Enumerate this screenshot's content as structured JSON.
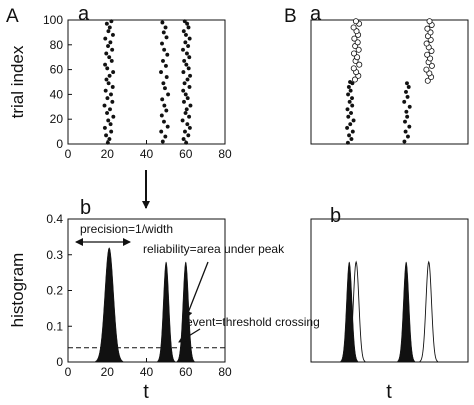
{
  "figure": {
    "panel_A": "A",
    "panel_B": "B",
    "sub_a": "a",
    "sub_b": "b",
    "ylabel_raster": "trial index",
    "ylabel_hist": "histogram",
    "xlabel_t": "t",
    "annotations": {
      "precision": "precision=1/width",
      "reliability": "reliability=area under peak",
      "event": "event=threshold crossing"
    }
  },
  "chart_data": [
    {
      "type": "scatter",
      "panel": "A-a",
      "xlim": [
        0,
        80
      ],
      "ylim": [
        0,
        100
      ],
      "xticks": [
        0,
        20,
        40,
        60,
        80
      ],
      "yticks": [
        0,
        20,
        40,
        60,
        80,
        100
      ],
      "series": [
        {
          "values": [
            [
              20.3,
              1
            ],
            [
              21.1,
              4
            ],
            [
              19.4,
              7
            ],
            [
              22.0,
              10
            ],
            [
              18.8,
              13
            ],
            [
              21.7,
              16
            ],
            [
              20.5,
              19
            ],
            [
              23.1,
              22
            ],
            [
              19.9,
              25
            ],
            [
              21.4,
              28
            ],
            [
              18.6,
              31
            ],
            [
              22.6,
              34
            ],
            [
              20.1,
              37
            ],
            [
              21.9,
              40
            ],
            [
              19.2,
              43
            ],
            [
              22.8,
              46
            ],
            [
              20.7,
              49
            ],
            [
              19.6,
              52
            ],
            [
              21.2,
              55
            ],
            [
              23.0,
              58
            ],
            [
              20.0,
              61
            ],
            [
              18.9,
              64
            ],
            [
              22.3,
              67
            ],
            [
              21.0,
              70
            ],
            [
              19.5,
              73
            ],
            [
              22.5,
              76
            ],
            [
              20.4,
              79
            ],
            [
              21.6,
              82
            ],
            [
              19.0,
              85
            ],
            [
              22.9,
              88
            ],
            [
              20.6,
              91
            ],
            [
              21.3,
              94
            ],
            [
              19.8,
              97
            ],
            [
              22.1,
              99
            ]
          ]
        },
        {
          "values": [
            [
              48.3,
              2
            ],
            [
              49.6,
              6
            ],
            [
              47.5,
              10
            ],
            [
              50.8,
              14
            ],
            [
              48.9,
              18
            ],
            [
              47.8,
              23
            ],
            [
              50.1,
              27
            ],
            [
              49.1,
              31
            ],
            [
              48.0,
              36
            ],
            [
              51.0,
              40
            ],
            [
              49.4,
              45
            ],
            [
              48.6,
              49
            ],
            [
              50.3,
              54
            ],
            [
              47.4,
              58
            ],
            [
              49.9,
              63
            ],
            [
              48.4,
              67
            ],
            [
              50.6,
              72
            ],
            [
              49.0,
              76
            ],
            [
              47.9,
              81
            ],
            [
              50.2,
              86
            ],
            [
              48.8,
              90
            ],
            [
              49.7,
              94
            ],
            [
              48.1,
              98
            ]
          ]
        },
        {
          "values": [
            [
              60.2,
              1
            ],
            [
              58.9,
              4
            ],
            [
              61.3,
              7
            ],
            [
              59.6,
              10
            ],
            [
              62.1,
              13
            ],
            [
              60.8,
              16
            ],
            [
              58.4,
              19
            ],
            [
              61.7,
              22
            ],
            [
              59.9,
              25
            ],
            [
              60.5,
              28
            ],
            [
              62.4,
              31
            ],
            [
              59.1,
              34
            ],
            [
              61.0,
              37
            ],
            [
              60.0,
              40
            ],
            [
              58.7,
              43
            ],
            [
              61.9,
              46
            ],
            [
              59.4,
              49
            ],
            [
              60.9,
              52
            ],
            [
              62.2,
              55
            ],
            [
              58.8,
              58
            ],
            [
              61.5,
              61
            ],
            [
              60.3,
              64
            ],
            [
              59.2,
              67
            ],
            [
              61.8,
              70
            ],
            [
              60.6,
              73
            ],
            [
              58.6,
              76
            ],
            [
              61.2,
              79
            ],
            [
              59.8,
              82
            ],
            [
              62.0,
              85
            ],
            [
              60.1,
              88
            ],
            [
              59.0,
              91
            ],
            [
              61.4,
              94
            ],
            [
              60.7,
              97
            ],
            [
              59.5,
              99
            ]
          ]
        }
      ]
    },
    {
      "type": "area",
      "panel": "A-b",
      "xlim": [
        0,
        80
      ],
      "ylim": [
        0,
        0.4
      ],
      "xticks": [
        0,
        20,
        40,
        60,
        80
      ],
      "yticks": [
        0,
        0.1,
        0.2,
        0.3,
        0.4
      ],
      "threshold": 0.04,
      "peaks": [
        {
          "center": 21,
          "height": 0.32,
          "width": 2.2
        },
        {
          "center": 50,
          "height": 0.28,
          "width": 1.4
        },
        {
          "center": 60,
          "height": 0.28,
          "width": 1.4
        }
      ]
    },
    {
      "type": "scatter",
      "panel": "B-a",
      "xlim": [
        0,
        80
      ],
      "ylim": [
        0,
        100
      ],
      "series": [
        {
          "style": "filled",
          "values": [
            [
              18.8,
              1
            ],
            [
              20.6,
              4
            ],
            [
              19.4,
              7
            ],
            [
              21.3,
              10
            ],
            [
              18.4,
              13
            ],
            [
              20.0,
              16
            ],
            [
              21.7,
              19
            ],
            [
              19.0,
              22
            ],
            [
              20.4,
              25
            ],
            [
              18.6,
              28
            ],
            [
              21.0,
              31
            ],
            [
              19.7,
              34
            ],
            [
              20.9,
              37
            ],
            [
              18.9,
              40
            ],
            [
              20.2,
              43
            ],
            [
              19.3,
              46
            ],
            [
              21.1,
              49
            ],
            [
              19.9,
              50
            ]
          ]
        },
        {
          "style": "filled",
          "values": [
            [
              47.6,
              2
            ],
            [
              49.4,
              6
            ],
            [
              48.2,
              10
            ],
            [
              50.1,
              14
            ],
            [
              47.9,
              18
            ],
            [
              49.0,
              22
            ],
            [
              48.6,
              26
            ],
            [
              50.3,
              30
            ],
            [
              47.5,
              34
            ],
            [
              49.2,
              38
            ],
            [
              48.4,
              42
            ],
            [
              49.8,
              46
            ],
            [
              48.9,
              49
            ]
          ]
        },
        {
          "style": "open",
          "values": [
            [
              22.4,
              52
            ],
            [
              24.1,
              55
            ],
            [
              23.0,
              58
            ],
            [
              21.8,
              61
            ],
            [
              24.6,
              64
            ],
            [
              22.7,
              67
            ],
            [
              23.5,
              70
            ],
            [
              21.9,
              73
            ],
            [
              24.3,
              76
            ],
            [
              22.5,
              79
            ],
            [
              23.8,
              82
            ],
            [
              22.1,
              85
            ],
            [
              24.0,
              88
            ],
            [
              23.2,
              91
            ],
            [
              21.7,
              94
            ],
            [
              24.5,
              97
            ],
            [
              22.9,
              99
            ]
          ]
        },
        {
          "style": "open",
          "values": [
            [
              59.5,
              51
            ],
            [
              61.2,
              54
            ],
            [
              60.3,
              57
            ],
            [
              58.8,
              60
            ],
            [
              61.6,
              63
            ],
            [
              59.9,
              66
            ],
            [
              60.7,
              69
            ],
            [
              59.2,
              72
            ],
            [
              61.4,
              75
            ],
            [
              60.0,
              78
            ],
            [
              58.9,
              81
            ],
            [
              61.0,
              84
            ],
            [
              59.6,
              87
            ],
            [
              60.9,
              90
            ],
            [
              59.3,
              93
            ],
            [
              61.5,
              96
            ],
            [
              60.4,
              99
            ]
          ]
        }
      ]
    },
    {
      "type": "area",
      "panel": "B-b",
      "xlim": [
        0,
        80
      ],
      "ylim": [
        0,
        0.4
      ],
      "peaks_filled": [
        {
          "center": 19.5,
          "height": 0.28,
          "width": 1.4
        },
        {
          "center": 48.5,
          "height": 0.28,
          "width": 1.4
        }
      ],
      "peaks_open": [
        {
          "center": 23,
          "height": 0.28,
          "width": 1.4
        },
        {
          "center": 60,
          "height": 0.28,
          "width": 1.4
        }
      ]
    }
  ]
}
